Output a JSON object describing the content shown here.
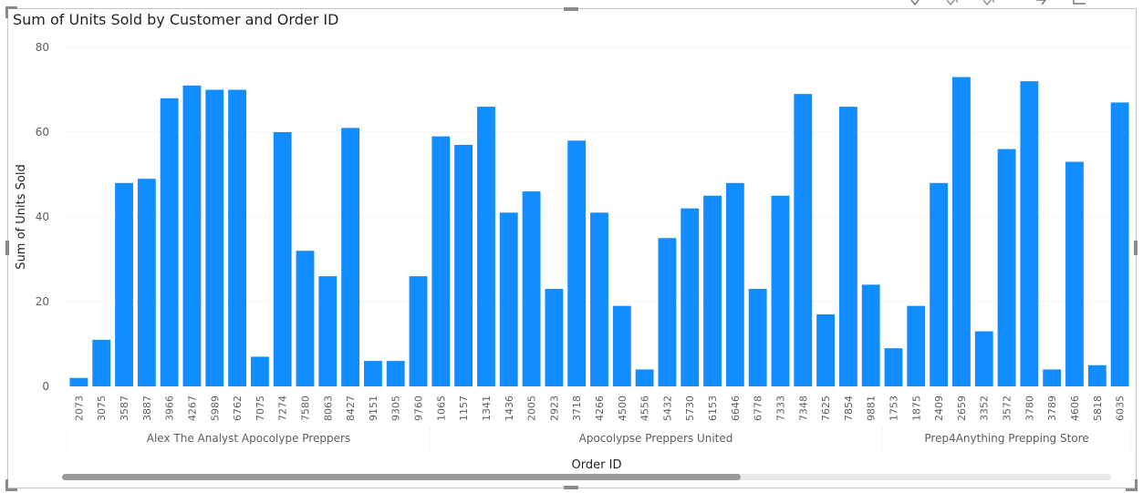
{
  "chart_data": {
    "type": "bar",
    "title": "Sum of Units Sold by Customer and Order ID",
    "xlabel": "Order ID",
    "ylabel": "Sum of Units Sold",
    "ylim": [
      0,
      80
    ],
    "yticks": [
      0,
      20,
      40,
      60,
      80
    ],
    "grid": true,
    "color": "#118DFF",
    "groups": [
      {
        "name": "Alex The Analyst Apocolype Preppers",
        "categories": [
          "2073",
          "3075",
          "3587",
          "3887",
          "3966",
          "4267",
          "5989",
          "6762",
          "7075",
          "7274",
          "7580",
          "8063",
          "8427",
          "9151",
          "9305",
          "9760"
        ],
        "values": [
          2,
          11,
          48,
          49,
          68,
          71,
          70,
          70,
          7,
          60,
          32,
          26,
          61,
          6,
          6,
          26
        ]
      },
      {
        "name": "Apocolypse Preppers United",
        "categories": [
          "1065",
          "1157",
          "1341",
          "1436",
          "2005",
          "2923",
          "3718",
          "4266",
          "4500",
          "4556",
          "5432",
          "5730",
          "6153",
          "6646",
          "6778",
          "7333",
          "7348",
          "7625",
          "7854",
          "9881"
        ],
        "values": [
          59,
          57,
          66,
          41,
          46,
          23,
          58,
          41,
          19,
          4,
          35,
          42,
          45,
          48,
          23,
          45,
          69,
          17,
          66,
          24
        ]
      },
      {
        "name": "Prep4Anything Prepping Store",
        "categories": [
          "1753",
          "1875",
          "2409",
          "2659",
          "3352",
          "3572",
          "3780",
          "3789",
          "4606",
          "5818",
          "6035"
        ],
        "values": [
          9,
          19,
          48,
          73,
          13,
          56,
          72,
          4,
          53,
          5,
          67
        ]
      }
    ]
  }
}
